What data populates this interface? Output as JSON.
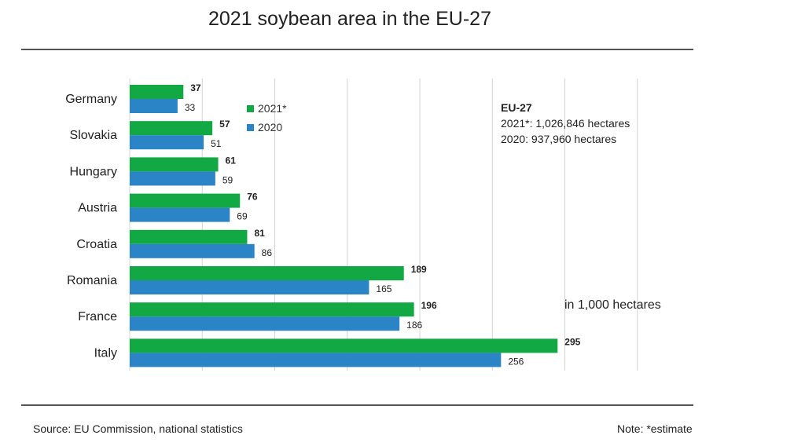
{
  "title": "2021 soybean area in the EU-27",
  "legend": {
    "series_2021": "2021*",
    "series_2020": "2020"
  },
  "info_box": {
    "heading": "EU-27",
    "line_2021": "2021*: 1,026,846 hectares",
    "line_2020": "2020: 937,960 hectares"
  },
  "unit_note": "in 1,000 hectares",
  "source": "Source:  EU Commission, national statistics",
  "note": "Note: *estimate",
  "colors": {
    "series_2021": "#12a843",
    "series_2020": "#2a84c6",
    "grid": "#d4d4d4"
  },
  "chart_data": {
    "type": "bar",
    "orientation": "horizontal",
    "title": "2021 soybean area in the EU-27",
    "unit": "in 1,000 hectares",
    "categories": [
      "Germany",
      "Slovakia",
      "Hungary",
      "Austria",
      "Croatia",
      "Romania",
      "France",
      "Italy"
    ],
    "series": [
      {
        "name": "2021*",
        "values": [
          37,
          57,
          61,
          76,
          81,
          189,
          196,
          295
        ]
      },
      {
        "name": "2020",
        "values": [
          33,
          51,
          59,
          69,
          86,
          165,
          186,
          256
        ]
      }
    ],
    "xlim": [
      0,
      350
    ],
    "x_grid_step": 50,
    "grid": true,
    "legend_position": "top-left"
  }
}
